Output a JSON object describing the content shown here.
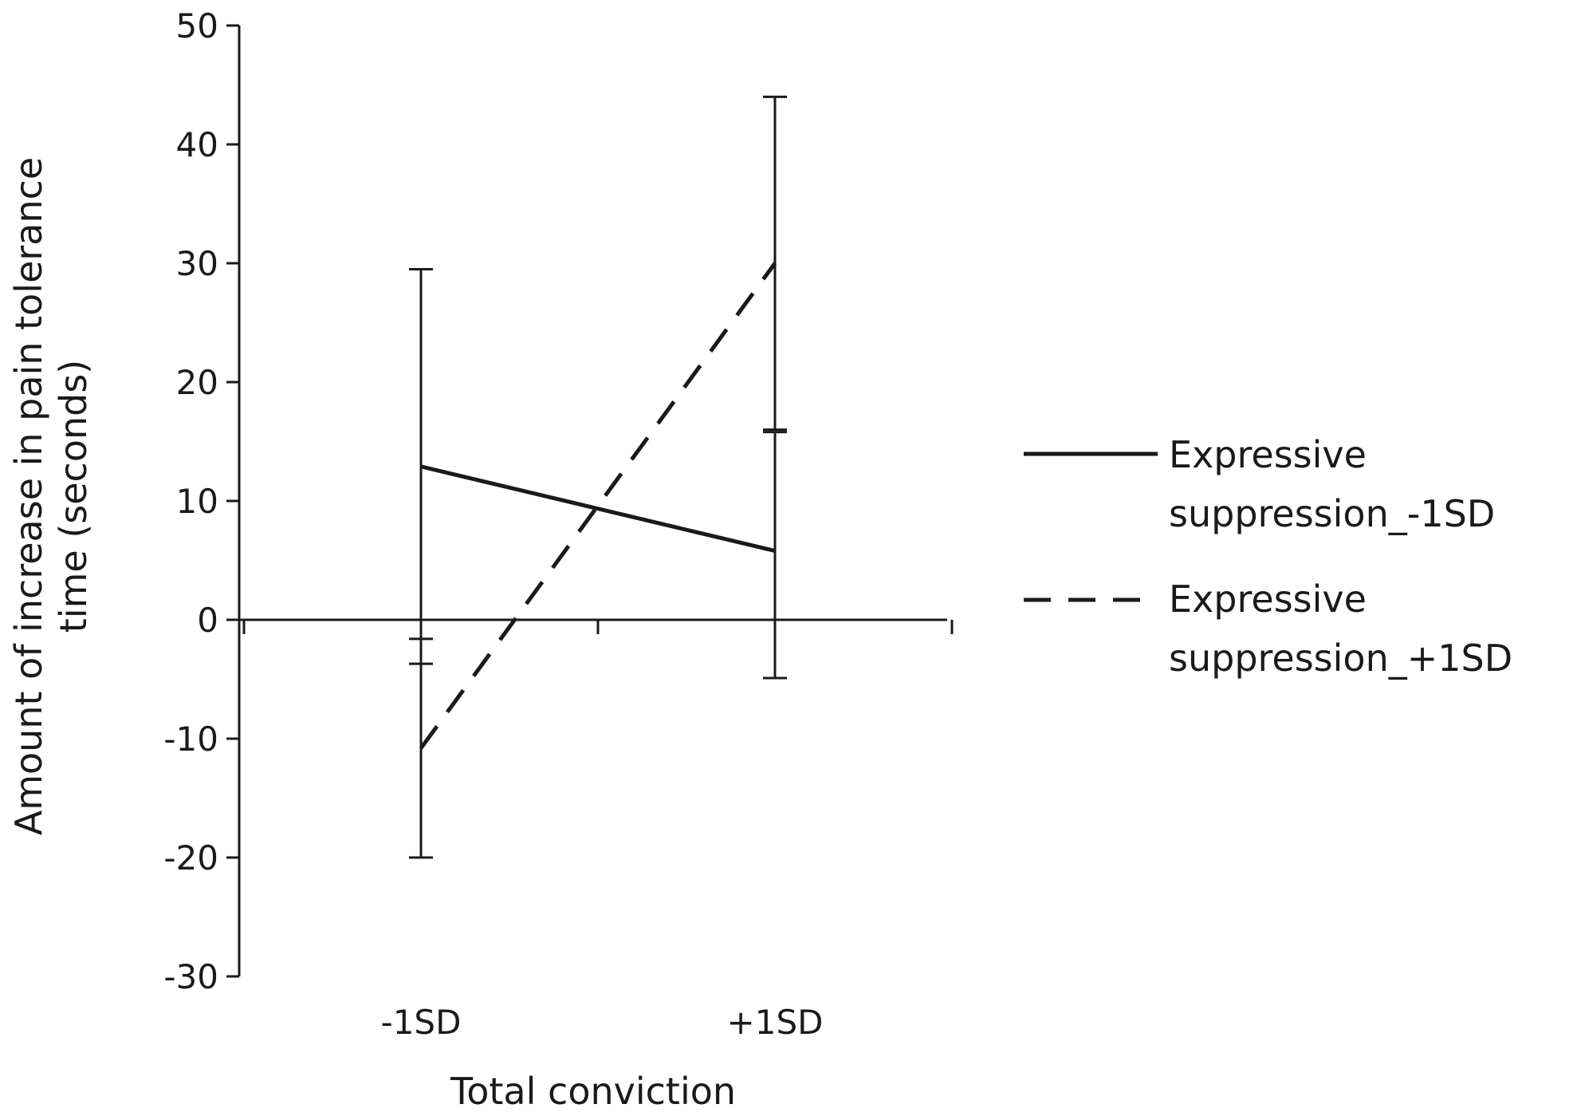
{
  "chart_data": {
    "type": "line",
    "title": "",
    "xlabel": "Total conviction",
    "ylabel_lines": [
      "Amount of increase in pain tolerance",
      "time (seconds)"
    ],
    "categories": [
      "-1SD",
      "+1SD"
    ],
    "ylim": [
      -30,
      50
    ],
    "yticks": [
      50,
      40,
      30,
      20,
      10,
      0,
      -10,
      -20,
      -30
    ],
    "grid": false,
    "legend_position": "right",
    "series": [
      {
        "name_lines": [
          "Expressive",
          "suppression_-1SD"
        ],
        "values": [
          12.9,
          5.8
        ],
        "error_bars": [
          [
            -3.7,
            29.5
          ],
          [
            -4.9,
            15.8
          ]
        ],
        "line_style": "solid"
      },
      {
        "name_lines": [
          "Expressive",
          "suppression_+1SD"
        ],
        "values": [
          -10.8,
          30.0
        ],
        "error_bars": [
          [
            -20.0,
            -1.6
          ],
          [
            16.0,
            44.0
          ]
        ],
        "line_style": "dashed"
      }
    ]
  }
}
